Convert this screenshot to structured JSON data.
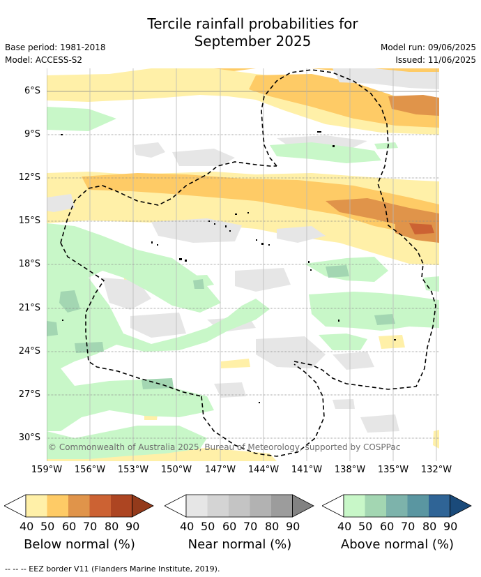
{
  "title_line1": "Tercile rainfall probabilities for",
  "title_line2": "September 2025",
  "base_period": "Base period: 1981-2018",
  "model": "Model: ACCESS-S2",
  "model_run": "Model run: 09/06/2025",
  "issued": "Issued: 11/06/2025",
  "lat_labels": [
    "6°S",
    "9°S",
    "12°S",
    "15°S",
    "18°S",
    "21°S",
    "24°S",
    "27°S",
    "30°S"
  ],
  "lon_labels": [
    "159°W",
    "156°W",
    "153°W",
    "150°W",
    "147°W",
    "144°W",
    "141°W",
    "138°W",
    "135°W",
    "132°W"
  ],
  "copyright": "© Commonwealth of Australia 2025, Bureau of Meteorology, supported by COSPPac",
  "legend": {
    "tick_labels": [
      "40",
      "50",
      "60",
      "70",
      "80",
      "90"
    ],
    "below": {
      "title": "Below normal (%)",
      "colors": [
        "#fff0a8",
        "#fecb66",
        "#e0944a",
        "#cc6233",
        "#ad4522",
        "#933a1b"
      ]
    },
    "near": {
      "title": "Near normal (%)",
      "colors": [
        "#e6e6e6",
        "#d4d4d4",
        "#c4c4c4",
        "#b2b2b2",
        "#9c9c9c",
        "#828282"
      ]
    },
    "above": {
      "title": "Above normal (%)",
      "colors": [
        "#c8f7c8",
        "#a3d6b2",
        "#7db3ab",
        "#5a96a1",
        "#2f6496",
        "#1a4a7a"
      ]
    }
  },
  "footer": "-- -- -- EEZ border V11 (Flanders Marine Institute, 2019)."
}
